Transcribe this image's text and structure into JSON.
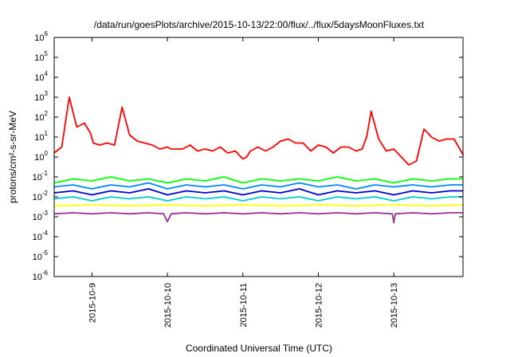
{
  "chart_data": {
    "type": "line",
    "title": "/data/run/goesPlots/archive/2015-10-13/22:00/flux/../flux/5daysMoonFluxes.txt",
    "xlabel": "Coordinated Universal Time (UTC)",
    "ylabel": "protons/cm²-s-sr-MeV",
    "yscale": "log",
    "ylim_exp": [
      -6,
      6
    ],
    "y_ticks": [
      {
        "mantissa": "10",
        "exp": "-6",
        "value": -6
      },
      {
        "mantissa": "10",
        "exp": "-5",
        "value": -5
      },
      {
        "mantissa": "10",
        "exp": "-4",
        "value": -4
      },
      {
        "mantissa": "10",
        "exp": "-3",
        "value": -3
      },
      {
        "mantissa": "10",
        "exp": "-2",
        "value": -2
      },
      {
        "mantissa": "10",
        "exp": "-1",
        "value": -1
      },
      {
        "mantissa": "10",
        "exp": "0",
        "value": 0
      },
      {
        "mantissa": "10",
        "exp": "1",
        "value": 1
      },
      {
        "mantissa": "10",
        "exp": "2",
        "value": 2
      },
      {
        "mantissa": "10",
        "exp": "3",
        "value": 3
      },
      {
        "mantissa": "10",
        "exp": "4",
        "value": 4
      },
      {
        "mantissa": "10",
        "exp": "5",
        "value": 5
      },
      {
        "mantissa": "10",
        "exp": "6",
        "value": 6
      }
    ],
    "xlim": [
      "2015-10-08 12:00",
      "2015-10-13 22:00"
    ],
    "x_ticks": [
      "2015-10-9",
      "2015-10-10",
      "2015-10-11",
      "2015-10-12",
      "2015-10-13"
    ],
    "x_tick_days": [
      0.5,
      1.5,
      2.5,
      3.5,
      4.5
    ],
    "x_days_span": 5.4167,
    "grid": false,
    "legend": "none",
    "series": [
      {
        "color": "#ff0000",
        "x_days": [
          0,
          0.1,
          0.2,
          0.3,
          0.4,
          0.48,
          0.52,
          0.6,
          0.7,
          0.8,
          0.9,
          1.0,
          1.1,
          1.2,
          1.3,
          1.4,
          1.5,
          1.55,
          1.62,
          1.7,
          1.8,
          1.9,
          2.0,
          2.1,
          2.2,
          2.3,
          2.4,
          2.5,
          2.55,
          2.6,
          2.7,
          2.8,
          2.9,
          3.0,
          3.1,
          3.2,
          3.3,
          3.4,
          3.5,
          3.6,
          3.7,
          3.8,
          3.9,
          4.0,
          4.08,
          4.14,
          4.2,
          4.3,
          4.4,
          4.5,
          4.6,
          4.7,
          4.8,
          4.9,
          5.0,
          5.1,
          5.2,
          5.3,
          5.42
        ],
        "log10_values": [
          0.2,
          0.5,
          3.0,
          1.5,
          1.7,
          1.2,
          0.7,
          0.6,
          0.7,
          0.6,
          2.5,
          1.1,
          0.8,
          0.7,
          0.6,
          0.4,
          0.5,
          0.4,
          0.4,
          0.4,
          0.6,
          0.3,
          0.4,
          0.3,
          0.5,
          0.2,
          0.3,
          -0.1,
          0.0,
          0.3,
          0.5,
          0.3,
          0.5,
          0.8,
          0.9,
          0.7,
          0.7,
          0.3,
          0.6,
          0.5,
          0.2,
          0.5,
          0.5,
          0.3,
          0.4,
          1.0,
          2.3,
          0.9,
          0.3,
          0.4,
          0.0,
          -0.4,
          -0.2,
          1.4,
          1.0,
          0.8,
          0.9,
          0.9,
          0.1
        ]
      },
      {
        "color": "#00ff00",
        "x_days": [
          0,
          0.25,
          0.5,
          0.75,
          1.0,
          1.25,
          1.5,
          1.75,
          2.0,
          2.25,
          2.5,
          2.75,
          3.0,
          3.25,
          3.5,
          3.75,
          4.0,
          4.25,
          4.5,
          4.75,
          5.0,
          5.25,
          5.42
        ],
        "log10_values": [
          -1.3,
          -1.1,
          -1.2,
          -1.0,
          -1.2,
          -1.1,
          -1.3,
          -1.1,
          -1.2,
          -1.0,
          -1.3,
          -1.1,
          -1.2,
          -1.1,
          -1.2,
          -1.0,
          -1.2,
          -1.1,
          -1.3,
          -1.1,
          -1.2,
          -1.1,
          -1.1
        ]
      },
      {
        "color": "#0088ff",
        "x_days": [
          0,
          0.25,
          0.5,
          0.75,
          1.0,
          1.25,
          1.5,
          1.75,
          2.0,
          2.25,
          2.5,
          2.75,
          3.0,
          3.25,
          3.5,
          3.75,
          4.0,
          4.25,
          4.5,
          4.75,
          5.0,
          5.25,
          5.42
        ],
        "log10_values": [
          -1.5,
          -1.4,
          -1.6,
          -1.4,
          -1.5,
          -1.3,
          -1.6,
          -1.4,
          -1.5,
          -1.4,
          -1.6,
          -1.4,
          -1.5,
          -1.3,
          -1.5,
          -1.4,
          -1.6,
          -1.4,
          -1.5,
          -1.4,
          -1.5,
          -1.4,
          -1.4
        ]
      },
      {
        "color": "#0000cc",
        "x_days": [
          0,
          0.25,
          0.5,
          0.75,
          1.0,
          1.25,
          1.5,
          1.75,
          2.0,
          2.25,
          2.5,
          2.75,
          3.0,
          3.25,
          3.5,
          3.75,
          4.0,
          4.25,
          4.5,
          4.75,
          5.0,
          5.25,
          5.42
        ],
        "log10_values": [
          -1.8,
          -1.7,
          -1.9,
          -1.7,
          -1.8,
          -1.6,
          -1.9,
          -1.7,
          -1.8,
          -1.7,
          -1.9,
          -1.7,
          -1.8,
          -1.6,
          -1.9,
          -1.7,
          -1.8,
          -1.7,
          -1.9,
          -1.7,
          -1.8,
          -1.7,
          -1.7
        ]
      },
      {
        "color": "#00cccc",
        "x_days": [
          0,
          0.25,
          0.5,
          0.75,
          1.0,
          1.25,
          1.5,
          1.75,
          2.0,
          2.25,
          2.5,
          2.75,
          3.0,
          3.25,
          3.5,
          3.75,
          4.0,
          4.25,
          4.5,
          4.75,
          5.0,
          5.25,
          5.42
        ],
        "log10_values": [
          -2.1,
          -2.0,
          -2.2,
          -2.0,
          -2.1,
          -2.0,
          -2.2,
          -2.0,
          -2.1,
          -2.0,
          -2.2,
          -2.0,
          -2.1,
          -2.0,
          -2.2,
          -2.0,
          -2.1,
          -2.0,
          -2.2,
          -2.0,
          -2.1,
          -2.0,
          -2.0
        ]
      },
      {
        "color": "#ffff00",
        "x_days": [
          0,
          0.5,
          1.0,
          1.5,
          2.0,
          2.5,
          3.0,
          3.5,
          4.0,
          4.5,
          5.0,
          5.42
        ],
        "log10_values": [
          -2.45,
          -2.4,
          -2.45,
          -2.4,
          -2.45,
          -2.4,
          -2.45,
          -2.4,
          -2.45,
          -2.4,
          -2.45,
          -2.4
        ]
      },
      {
        "color": "#993399",
        "x_days": [
          0,
          0.25,
          0.5,
          0.75,
          1.0,
          1.25,
          1.45,
          1.5,
          1.55,
          1.75,
          2.0,
          2.25,
          2.5,
          2.75,
          3.0,
          3.25,
          3.5,
          3.75,
          4.0,
          4.25,
          4.48,
          4.5,
          4.52,
          4.75,
          5.0,
          5.25,
          5.42
        ],
        "log10_values": [
          -2.85,
          -2.8,
          -2.85,
          -2.8,
          -2.85,
          -2.8,
          -2.85,
          -3.25,
          -2.85,
          -2.8,
          -2.85,
          -2.8,
          -2.85,
          -2.8,
          -2.85,
          -2.8,
          -2.85,
          -2.8,
          -2.85,
          -2.8,
          -2.85,
          -3.3,
          -2.85,
          -2.8,
          -2.85,
          -2.8,
          -2.8
        ]
      }
    ]
  }
}
